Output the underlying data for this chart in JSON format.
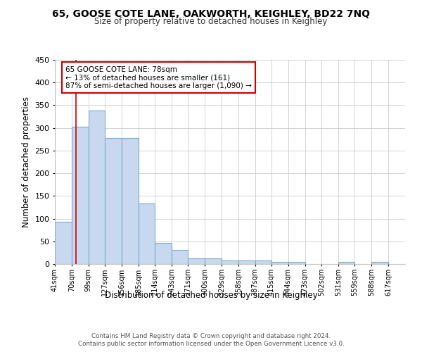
{
  "title1": "65, GOOSE COTE LANE, OAKWORTH, KEIGHLEY, BD22 7NQ",
  "title2": "Size of property relative to detached houses in Keighley",
  "xlabel": "Distribution of detached houses by size in Keighley",
  "ylabel": "Number of detached properties",
  "bar_color": "#c8d8ee",
  "bar_edge_color": "#7aaad0",
  "annotation_text": "65 GOOSE COTE LANE: 78sqm\n← 13% of detached houses are smaller (161)\n87% of semi-detached houses are larger (1,090) →",
  "annotation_box_color": "#ffffff",
  "annotation_box_edge": "#cc0000",
  "vline_x": 78,
  "vline_color": "#cc0000",
  "categories": [
    "41sqm",
    "70sqm",
    "99sqm",
    "127sqm",
    "156sqm",
    "185sqm",
    "214sqm",
    "243sqm",
    "271sqm",
    "300sqm",
    "329sqm",
    "358sqm",
    "387sqm",
    "415sqm",
    "444sqm",
    "473sqm",
    "502sqm",
    "531sqm",
    "559sqm",
    "588sqm",
    "617sqm"
  ],
  "bin_edges": [
    41,
    70,
    99,
    127,
    156,
    185,
    214,
    243,
    271,
    300,
    329,
    358,
    387,
    415,
    444,
    473,
    502,
    531,
    559,
    588,
    617
  ],
  "values": [
    93,
    303,
    338,
    278,
    278,
    133,
    46,
    31,
    13,
    13,
    8,
    8,
    8,
    4,
    4,
    0,
    0,
    4,
    0,
    4,
    0
  ],
  "ylim": [
    0,
    450
  ],
  "footer1": "Contains HM Land Registry data © Crown copyright and database right 2024.",
  "footer2": "Contains public sector information licensed under the Open Government Licence v3.0.",
  "background_color": "#ffffff",
  "plot_bg_color": "#ffffff",
  "grid_color": "#cccccc"
}
